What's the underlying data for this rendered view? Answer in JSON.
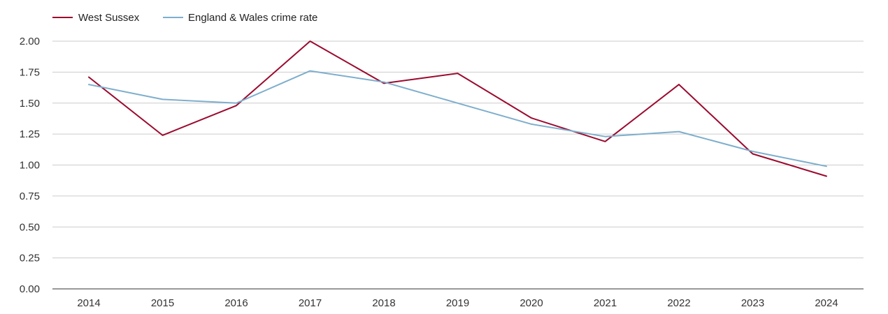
{
  "chart_data": {
    "type": "line",
    "title": "",
    "xlabel": "",
    "ylabel": "",
    "categories": [
      "2014",
      "2015",
      "2016",
      "2017",
      "2018",
      "2019",
      "2020",
      "2021",
      "2022",
      "2023",
      "2024"
    ],
    "yticks": [
      "0.00",
      "0.25",
      "0.50",
      "0.75",
      "1.00",
      "1.25",
      "1.50",
      "1.75",
      "2.00"
    ],
    "ylim": [
      0,
      2
    ],
    "grid": true,
    "legend_position": "top-left",
    "series": [
      {
        "name": "West Sussex",
        "color": "#9b0a2e",
        "values": [
          1.71,
          1.24,
          1.48,
          2.0,
          1.66,
          1.74,
          1.38,
          1.19,
          1.65,
          1.09,
          0.91
        ]
      },
      {
        "name": "England & Wales crime rate",
        "color": "#7eaecd",
        "values": [
          1.65,
          1.53,
          1.5,
          1.76,
          1.67,
          1.5,
          1.33,
          1.23,
          1.27,
          1.11,
          0.99
        ]
      }
    ]
  }
}
